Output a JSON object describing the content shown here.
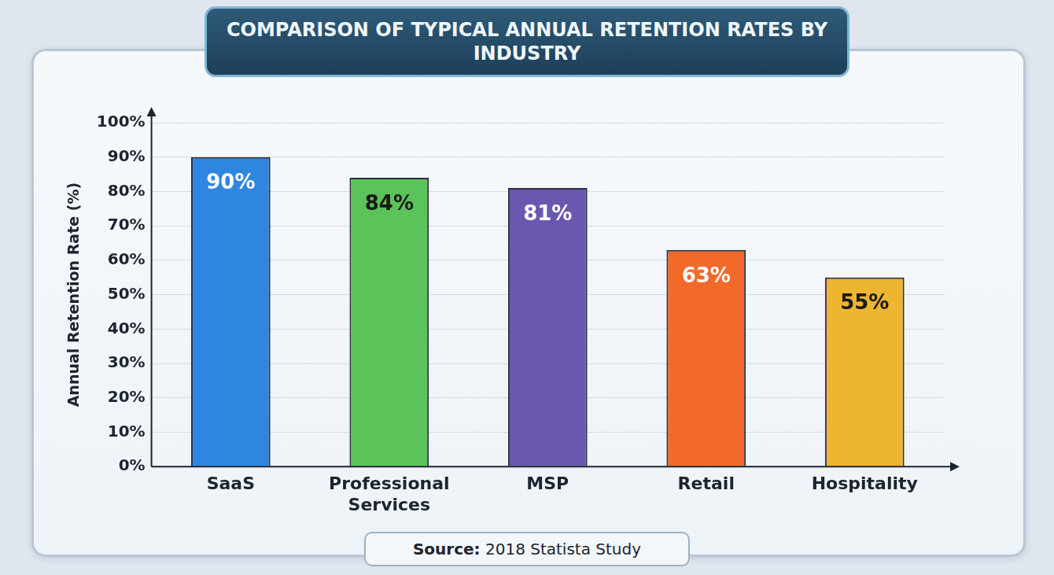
{
  "chart_data": {
    "type": "bar",
    "title": "COMPARISON OF TYPICAL ANNUAL RETENTION RATES BY INDUSTRY",
    "y_label": "Annual Retention Rate (%)",
    "categories": [
      "SaaS",
      "Professional Services",
      "MSP",
      "Retail",
      "Hospitality"
    ],
    "values": [
      90,
      84,
      81,
      63,
      55
    ],
    "value_labels": [
      "90%",
      "84%",
      "81%",
      "63%",
      "55%"
    ],
    "colors": [
      "#2f86e0",
      "#5cc35a",
      "#6a58b0",
      "#f26a2a",
      "#eeb530"
    ],
    "ylim": [
      0,
      100
    ],
    "yticks": [
      {
        "value": 0,
        "label": "0%"
      },
      {
        "value": 10,
        "label": "10%"
      },
      {
        "value": 20,
        "label": "20%"
      },
      {
        "value": 30,
        "label": "30%"
      },
      {
        "value": 40,
        "label": "40%"
      },
      {
        "value": 50,
        "label": "50%"
      },
      {
        "value": 60,
        "label": "60%"
      },
      {
        "value": 70,
        "label": "70%"
      },
      {
        "value": 80,
        "label": "80%"
      },
      {
        "value": 90,
        "label": "90%"
      },
      {
        "value": 100,
        "label": "100%"
      }
    ],
    "grid": true,
    "data_labels": true,
    "source_label": "Source:",
    "source": "2018 Statista Study"
  }
}
